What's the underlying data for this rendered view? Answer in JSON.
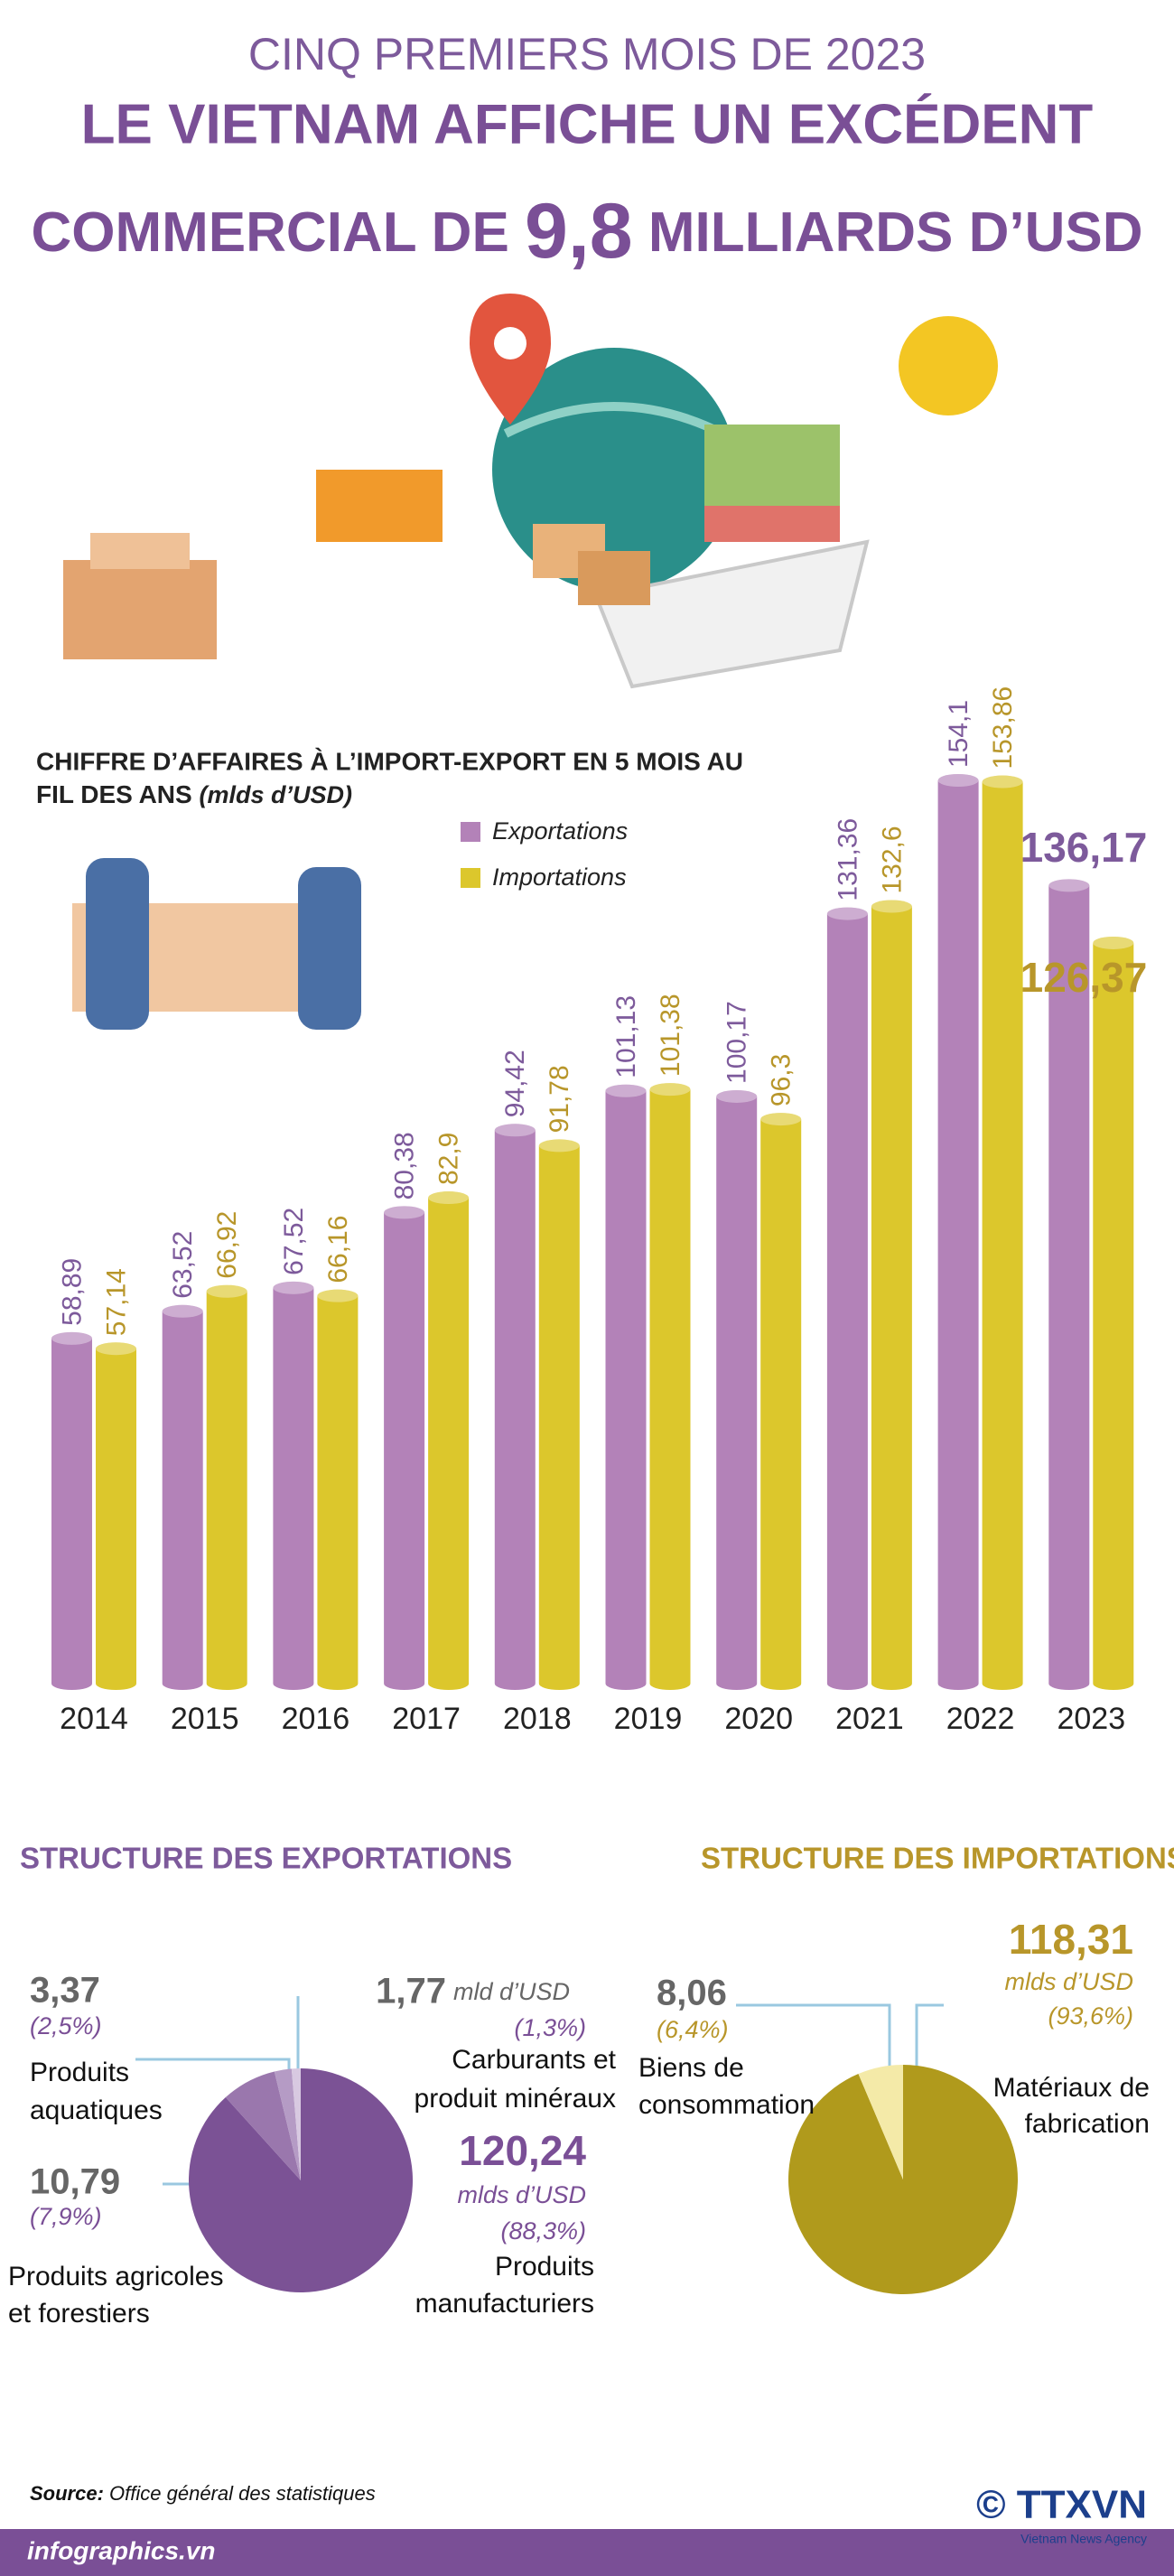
{
  "header": {
    "line1": "CINQ PREMIERS MOIS DE 2023",
    "line2": "LE VIETNAM AFFICHE UN EXCÉDENT",
    "line3_start": "COMMERCIAL DE",
    "line3_number": "9,8",
    "line3_end": "MILLIARDS D’USD"
  },
  "chart_data": [
    {
      "type": "bar",
      "title": "CHIFFRE D’AFFAIRES À L’IMPORT-EXPORT EN 5 MOIS AU",
      "title_line2": "FIL DES ANS",
      "subtitle": "(mlds d’USD)",
      "categories": [
        "2014",
        "2015",
        "2016",
        "2017",
        "2018",
        "2019",
        "2020",
        "2021",
        "2022",
        "2023"
      ],
      "series": [
        {
          "name": "Exportations",
          "color": "#b382b8",
          "label_color": "#7d5a9b",
          "values": [
            58.89,
            63.52,
            67.52,
            80.38,
            94.42,
            101.13,
            100.17,
            131.36,
            154.1,
            136.17
          ],
          "value_labels": [
            "58,89",
            "63,52",
            "67,52",
            "80,38",
            "94,42",
            "101,13",
            "100,17",
            "131,36",
            "154,1",
            "136,17"
          ]
        },
        {
          "name": "Importations",
          "color": "#dcc72c",
          "label_color": "#b8962a",
          "values": [
            57.14,
            66.92,
            66.16,
            82.9,
            91.78,
            101.38,
            96.3,
            132.6,
            153.86,
            126.37
          ],
          "value_labels": [
            "57,14",
            "66,92",
            "66,16",
            "82,9",
            "91,78",
            "101,38",
            "96,3",
            "132,6",
            "153,86",
            "126,37"
          ]
        }
      ]
    },
    {
      "type": "pie",
      "title": "STRUCTURE DES EXPORTATIONS",
      "title_color": "#7d5a9b",
      "categories": [
        "Produits manufacturiers",
        "Produits agricoles et forestiers",
        "Produits aquatiques",
        "Carburants et produit minéraux"
      ],
      "values": [
        120.24,
        10.79,
        3.37,
        1.77
      ],
      "value_labels": [
        "120,24",
        "10,79",
        "3,37",
        "1,77"
      ],
      "unit_labels": [
        "mlds d’USD",
        null,
        null,
        "mld d’USD"
      ],
      "percents": [
        88.3,
        7.9,
        2.5,
        1.3
      ],
      "percent_labels": [
        "(88,3%)",
        "(7,9%)",
        "(2,5%)",
        "(1,3%)"
      ],
      "colors": [
        "#7b5295",
        "#9a77ad",
        "#b59bc5",
        "#d8c9e1"
      ]
    },
    {
      "type": "pie",
      "title": "STRUCTURE DES IMPORTATIONS",
      "title_color": "#b8962a",
      "categories": [
        "Matériaux de fabrication",
        "Biens de consommation"
      ],
      "values": [
        118.31,
        8.06
      ],
      "value_labels": [
        "118,31",
        "8,06"
      ],
      "unit_labels": [
        "mlds d’USD",
        null
      ],
      "percents": [
        93.6,
        6.4
      ],
      "percent_labels": [
        "(93,6%)",
        "(6,4%)"
      ],
      "colors": [
        "#b09a1c",
        "#f4eaa8"
      ]
    }
  ],
  "source": {
    "label": "Source:",
    "text": "Office général des statistiques"
  },
  "footer": {
    "site": "infographics.vn",
    "logo": "© TTXVN",
    "agency": "Vietnam News Agency"
  }
}
